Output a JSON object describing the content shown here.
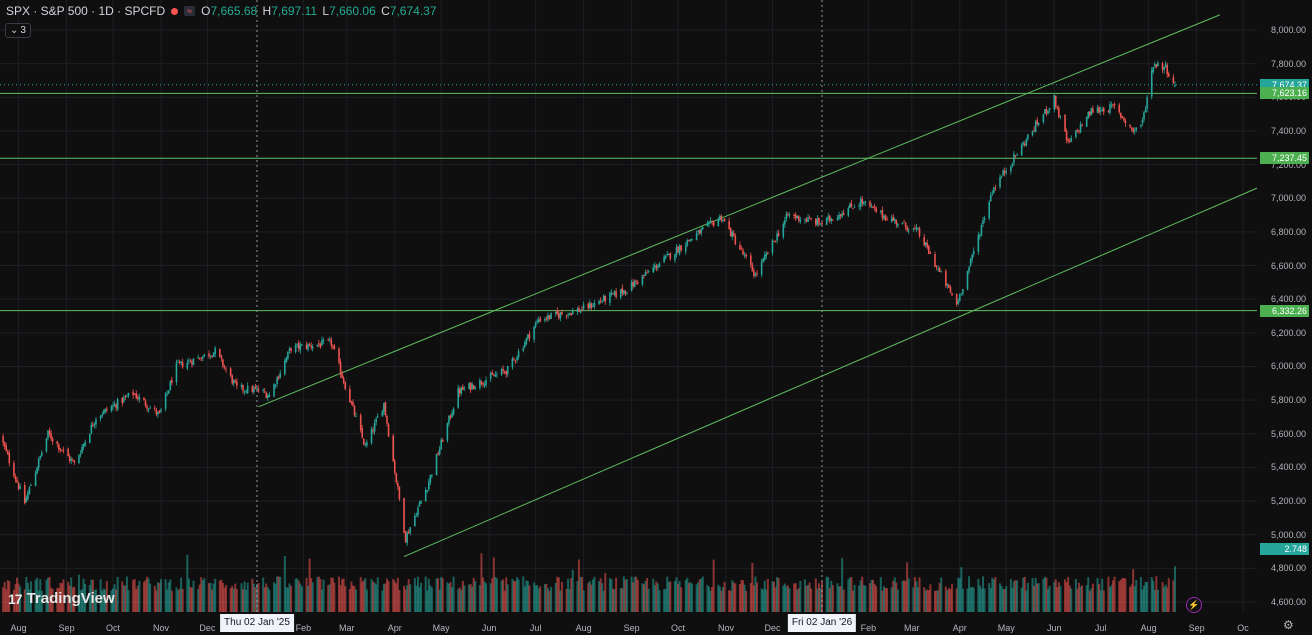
{
  "header": {
    "symbol": "SPX · S&P 500 · 1D · SPCFD",
    "o_key": "O",
    "o_val": "7,665.68",
    "h_key": "H",
    "h_val": "7,697.11",
    "l_key": "L",
    "l_val": "7,660.06",
    "c_key": "C",
    "c_val": "7,674.37",
    "indicator_count": "3"
  },
  "branding": {
    "logo_text": "TradingView",
    "logo_mark": "17"
  },
  "colors": {
    "up": "#26a69a",
    "down": "#ef5350",
    "levels": "#5fbf5f",
    "background": "#0f0f0f"
  },
  "x_axis": {
    "months": [
      {
        "label": "Aug",
        "date": "2024-08-01"
      },
      {
        "label": "Sep",
        "date": "2024-09-01"
      },
      {
        "label": "Oct",
        "date": "2024-10-01"
      },
      {
        "label": "Nov",
        "date": "2024-11-01"
      },
      {
        "label": "Dec",
        "date": "2024-12-01"
      },
      {
        "label": "Feb",
        "date": "2025-02-01"
      },
      {
        "label": "Mar",
        "date": "2025-03-01"
      },
      {
        "label": "Apr",
        "date": "2025-04-01"
      },
      {
        "label": "May",
        "date": "2025-05-01"
      },
      {
        "label": "Jun",
        "date": "2025-06-01"
      },
      {
        "label": "Jul",
        "date": "2025-07-01"
      },
      {
        "label": "Aug",
        "date": "2025-08-01"
      },
      {
        "label": "Sep",
        "date": "2025-09-01"
      },
      {
        "label": "Oct",
        "date": "2025-10-01"
      },
      {
        "label": "Nov",
        "date": "2025-11-01"
      },
      {
        "label": "Dec",
        "date": "2025-12-01"
      },
      {
        "label": "Feb",
        "date": "2026-02-01"
      },
      {
        "label": "Mar",
        "date": "2026-03-01"
      },
      {
        "label": "Apr",
        "date": "2026-04-01"
      },
      {
        "label": "May",
        "date": "2026-05-01"
      },
      {
        "label": "Jun",
        "date": "2026-06-01"
      },
      {
        "label": "Jul",
        "date": "2026-07-01"
      },
      {
        "label": "Aug",
        "date": "2026-08-01"
      },
      {
        "label": "Sep",
        "date": "2026-09-01"
      },
      {
        "label": "Oc",
        "date": "2026-10-01"
      }
    ],
    "markers": [
      {
        "label": "Thu 02 Jan '25",
        "date": "2025-01-02"
      },
      {
        "label": "Fri 02 Jan '26",
        "date": "2026-01-02"
      }
    ]
  },
  "y_axis": {
    "ticks": [
      "4,600.00",
      "4,800.00",
      "5,000.00",
      "5,200.00",
      "5,400.00",
      "5,600.00",
      "5,800.00",
      "6,000.00",
      "6,200.00",
      "6,400.00",
      "6,600.00",
      "6,800.00",
      "7,000.00",
      "7,200.00",
      "7,400.00",
      "7,600.00",
      "7,800.00",
      "8,000.00"
    ],
    "tick_values": [
      4600,
      4800,
      5000,
      5200,
      5400,
      5600,
      5800,
      6000,
      6200,
      6400,
      6600,
      6800,
      7000,
      7200,
      7400,
      7600,
      7800,
      8000
    ]
  },
  "price_labels": [
    {
      "text": "7,674.37",
      "value": 7674.37,
      "color": "#26a69a"
    },
    {
      "text": "7,623.16",
      "value": 7623.16,
      "color": "#4caf50"
    },
    {
      "text": "7,237.45",
      "value": 7237.45,
      "color": "#4caf50"
    },
    {
      "text": "6,332.26",
      "value": 6332.26,
      "color": "#4caf50"
    }
  ],
  "volume_label": {
    "text": "2.748",
    "color": "#26a69a"
  },
  "chart_data": {
    "type": "candlestick",
    "title": "SPX · S&P 500 · 1D · SPCFD",
    "ylim": [
      4550,
      8080
    ],
    "xlim": [
      "2024-07-20",
      "2026-10-10"
    ],
    "grid": true,
    "horizontal_levels": [
      7623.16,
      7237.45,
      6332.26
    ],
    "channel": {
      "upper": [
        {
          "date": "2025-01-03",
          "value": 5760
        },
        {
          "date": "2026-09-16",
          "value": 8090
        }
      ],
      "lower": [
        {
          "date": "2025-04-07",
          "value": 4870
        },
        {
          "date": "2026-10-10",
          "value": 7060
        }
      ]
    },
    "last": {
      "open": 7665.68,
      "high": 7697.11,
      "low": 7660.06,
      "close": 7674.37
    },
    "path": [
      [
        "2024-07-20",
        5590
      ],
      [
        "2024-08-05",
        5190
      ],
      [
        "2024-08-20",
        5600
      ],
      [
        "2024-09-06",
        5420
      ],
      [
        "2024-09-20",
        5700
      ],
      [
        "2024-10-14",
        5840
      ],
      [
        "2024-10-31",
        5710
      ],
      [
        "2024-11-11",
        6000
      ],
      [
        "2024-12-06",
        6090
      ],
      [
        "2024-12-20",
        5870
      ],
      [
        "2025-01-02",
        5860
      ],
      [
        "2025-01-10",
        5830
      ],
      [
        "2025-01-24",
        6110
      ],
      [
        "2025-02-19",
        6140
      ],
      [
        "2025-03-13",
        5520
      ],
      [
        "2025-03-25",
        5780
      ],
      [
        "2025-04-08",
        4980
      ],
      [
        "2025-04-22",
        5290
      ],
      [
        "2025-05-12",
        5850
      ],
      [
        "2025-06-13",
        5980
      ],
      [
        "2025-07-03",
        6280
      ],
      [
        "2025-07-31",
        6340
      ],
      [
        "2025-08-29",
        6460
      ],
      [
        "2025-10-08",
        6750
      ],
      [
        "2025-10-29",
        6890
      ],
      [
        "2025-11-20",
        6540
      ],
      [
        "2025-12-11",
        6900
      ],
      [
        "2026-01-02",
        6850
      ],
      [
        "2026-01-27",
        6980
      ],
      [
        "2026-02-10",
        6900
      ],
      [
        "2026-03-05",
        6800
      ],
      [
        "2026-03-30",
        6370
      ],
      [
        "2026-04-08",
        6620
      ],
      [
        "2026-04-22",
        7050
      ],
      [
        "2026-05-20",
        7430
      ],
      [
        "2026-06-01",
        7590
      ],
      [
        "2026-06-10",
        7320
      ],
      [
        "2026-06-25",
        7520
      ],
      [
        "2026-07-10",
        7540
      ],
      [
        "2026-07-22",
        7400
      ],
      [
        "2026-07-28",
        7450
      ],
      [
        "2026-08-04",
        7800
      ],
      [
        "2026-08-12",
        7780
      ],
      [
        "2026-08-18",
        7674
      ]
    ],
    "end_date": "2026-08-18",
    "volume_max": 1.9
  }
}
